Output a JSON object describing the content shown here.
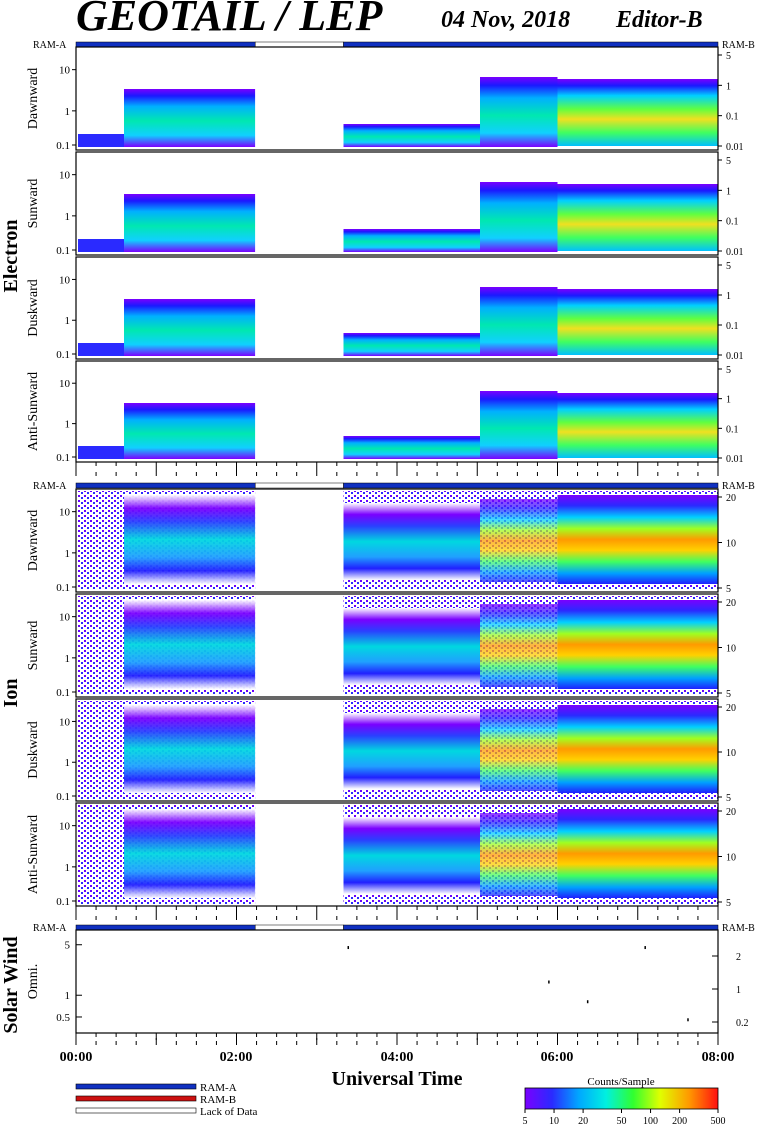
{
  "header": {
    "title": "GEOTAIL / LEP",
    "date": "04 Nov, 2018",
    "editor": "Editor-B"
  },
  "groups": {
    "electron": "Electron",
    "ion": "Ion",
    "solar_wind": "Solar Wind"
  },
  "ram_labels": {
    "left": "RAM-A",
    "right": "RAM-B"
  },
  "x_axis": {
    "title": "Universal Time",
    "ticks": [
      "00:00",
      "02:00",
      "04:00",
      "06:00",
      "08:00"
    ]
  },
  "legend": {
    "items": [
      {
        "label": "RAM-A",
        "color": "#1030c0"
      },
      {
        "label": "RAM-B",
        "color": "#cc1010"
      },
      {
        "label": "Lack of Data",
        "color": "#ffffff"
      }
    ],
    "colorbar_title": "Counts/Sample",
    "colorbar_ticks": [
      "5",
      "10",
      "20",
      "50",
      "100",
      "200",
      "500"
    ]
  },
  "chart_data": [
    {
      "type": "heatmap",
      "species": "Electron",
      "panels": [
        "Dawnward",
        "Sunward",
        "Duskward",
        "Anti-Sunward"
      ],
      "xlim": [
        "00:00",
        "08:00"
      ],
      "ylabel_ticks": [
        "0.1",
        "1",
        "10"
      ],
      "y2_ticks": [
        "5",
        "1",
        "0.1",
        "0.01"
      ],
      "data_gap": [
        "02:14",
        "03:20"
      ],
      "ram_bar": [
        {
          "from": "00:00",
          "to": "02:14",
          "mode": "RAM-A"
        },
        {
          "from": "02:14",
          "to": "03:20",
          "mode": "Lack of Data"
        },
        {
          "from": "03:20",
          "to": "08:00",
          "mode": "RAM-A"
        }
      ],
      "colorbar": {
        "label": "Counts/Sample",
        "range": [
          5,
          500
        ],
        "scale": "log"
      }
    },
    {
      "type": "heatmap",
      "species": "Ion",
      "panels": [
        "Dawnward",
        "Sunward",
        "Duskward",
        "Anti-Sunward"
      ],
      "xlim": [
        "00:00",
        "08:00"
      ],
      "ylabel_ticks": [
        "0.1",
        "1",
        "10"
      ],
      "y2_ticks": [
        "20",
        "10",
        "5"
      ],
      "data_gap": [
        "02:14",
        "03:20"
      ],
      "ram_bar": [
        {
          "from": "00:00",
          "to": "02:14",
          "mode": "RAM-A"
        },
        {
          "from": "02:14",
          "to": "03:20",
          "mode": "Lack of Data"
        },
        {
          "from": "03:20",
          "to": "08:00",
          "mode": "RAM-A"
        }
      ],
      "colorbar": {
        "label": "Counts/Sample",
        "range": [
          5,
          500
        ],
        "scale": "log"
      }
    },
    {
      "type": "scatter",
      "species": "Solar Wind",
      "panels": [
        "Omni."
      ],
      "xlim": [
        "00:00",
        "08:00"
      ],
      "ylabel_ticks": [
        "0.5",
        "1",
        "5"
      ],
      "y2_ticks": [
        "2",
        "1",
        "0.2"
      ],
      "ram_bar": [
        {
          "from": "00:00",
          "to": "02:14",
          "mode": "RAM-A"
        },
        {
          "from": "02:14",
          "to": "03:20",
          "mode": "Lack of Data"
        },
        {
          "from": "03:20",
          "to": "08:00",
          "mode": "RAM-A"
        }
      ],
      "points": [
        {
          "x": "03:23",
          "y": 4.5
        },
        {
          "x": "05:53",
          "y": 1.5
        },
        {
          "x": "06:22",
          "y": 0.8
        },
        {
          "x": "07:05",
          "y": 4.5
        },
        {
          "x": "07:37",
          "y": 0.45
        }
      ]
    }
  ]
}
